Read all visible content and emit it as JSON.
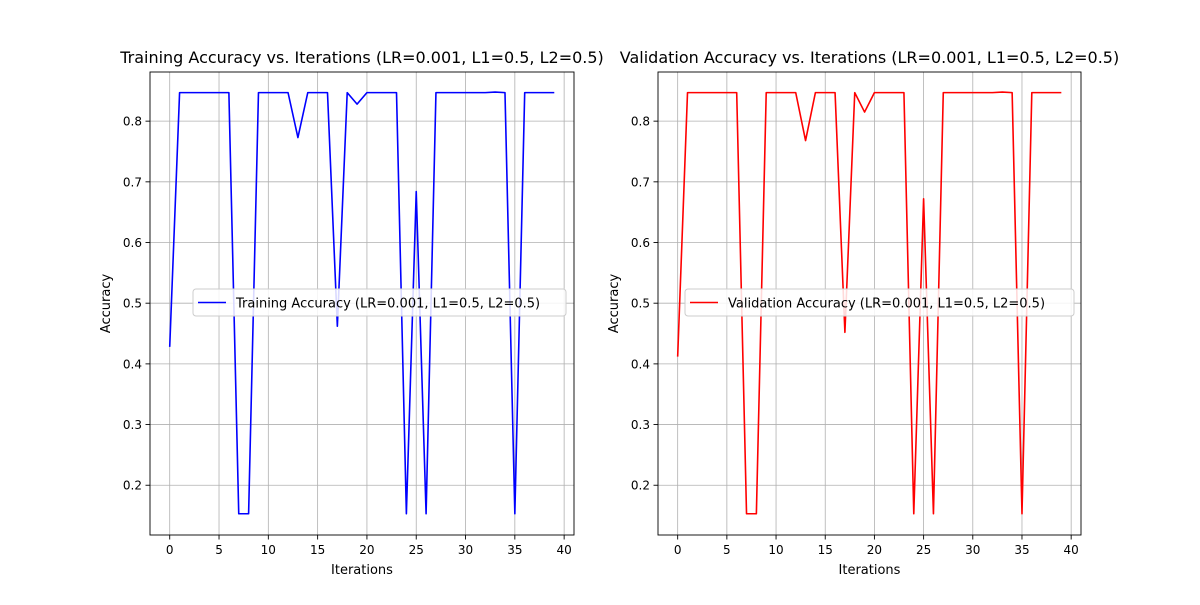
{
  "chart_data": [
    {
      "type": "line",
      "title": "Training Accuracy vs. Iterations (LR=0.001, L1=0.5, L2=0.5)",
      "xlabel": "Iterations",
      "ylabel": "Accuracy",
      "grid": true,
      "legend": "center-right",
      "xlim": [
        -2,
        41
      ],
      "ylim": [
        0.118,
        0.881
      ],
      "xticks": [
        0,
        5,
        10,
        15,
        20,
        25,
        30,
        35,
        40
      ],
      "yticks": [
        0.2,
        0.3,
        0.4,
        0.5,
        0.6,
        0.7,
        0.8
      ],
      "xtick_labels": [
        "0",
        "5",
        "10",
        "15",
        "20",
        "25",
        "30",
        "35",
        "40"
      ],
      "ytick_labels": [
        "0.2",
        "0.3",
        "0.4",
        "0.5",
        "0.6",
        "0.7",
        "0.8"
      ],
      "series": [
        {
          "name": "Training Accuracy (LR=0.001, L1=0.5, L2=0.5)",
          "color": "#0000ff",
          "x": [
            0,
            1,
            2,
            3,
            4,
            5,
            6,
            7,
            8,
            9,
            10,
            11,
            12,
            13,
            14,
            15,
            16,
            17,
            18,
            19,
            20,
            21,
            22,
            23,
            24,
            25,
            26,
            27,
            28,
            29,
            30,
            31,
            32,
            33,
            34,
            35,
            36,
            37,
            38,
            39
          ],
          "y": [
            0.428,
            0.847,
            0.847,
            0.847,
            0.847,
            0.847,
            0.847,
            0.153,
            0.153,
            0.847,
            0.847,
            0.847,
            0.847,
            0.773,
            0.847,
            0.847,
            0.847,
            0.462,
            0.847,
            0.828,
            0.847,
            0.847,
            0.847,
            0.847,
            0.153,
            0.684,
            0.153,
            0.847,
            0.847,
            0.847,
            0.847,
            0.847,
            0.847,
            0.848,
            0.847,
            0.153,
            0.847,
            0.847,
            0.847,
            0.847
          ]
        }
      ]
    },
    {
      "type": "line",
      "title": "Validation Accuracy vs. Iterations (LR=0.001, L1=0.5, L2=0.5)",
      "xlabel": "Iterations",
      "ylabel": "Accuracy",
      "grid": true,
      "legend": "center-right",
      "xlim": [
        -2,
        41
      ],
      "ylim": [
        0.118,
        0.881
      ],
      "xticks": [
        0,
        5,
        10,
        15,
        20,
        25,
        30,
        35,
        40
      ],
      "yticks": [
        0.2,
        0.3,
        0.4,
        0.5,
        0.6,
        0.7,
        0.8
      ],
      "xtick_labels": [
        "0",
        "5",
        "10",
        "15",
        "20",
        "25",
        "30",
        "35",
        "40"
      ],
      "ytick_labels": [
        "0.2",
        "0.3",
        "0.4",
        "0.5",
        "0.6",
        "0.7",
        "0.8"
      ],
      "series": [
        {
          "name": "Validation Accuracy (LR=0.001, L1=0.5, L2=0.5)",
          "color": "#ff0000",
          "x": [
            0,
            1,
            2,
            3,
            4,
            5,
            6,
            7,
            8,
            9,
            10,
            11,
            12,
            13,
            14,
            15,
            16,
            17,
            18,
            19,
            20,
            21,
            22,
            23,
            24,
            25,
            26,
            27,
            28,
            29,
            30,
            31,
            32,
            33,
            34,
            35,
            36,
            37,
            38,
            39
          ],
          "y": [
            0.412,
            0.847,
            0.847,
            0.847,
            0.847,
            0.847,
            0.847,
            0.153,
            0.153,
            0.847,
            0.847,
            0.847,
            0.847,
            0.768,
            0.847,
            0.847,
            0.847,
            0.452,
            0.847,
            0.815,
            0.847,
            0.847,
            0.847,
            0.847,
            0.153,
            0.672,
            0.153,
            0.847,
            0.847,
            0.847,
            0.847,
            0.847,
            0.847,
            0.848,
            0.847,
            0.153,
            0.847,
            0.847,
            0.847,
            0.847
          ]
        }
      ]
    }
  ]
}
